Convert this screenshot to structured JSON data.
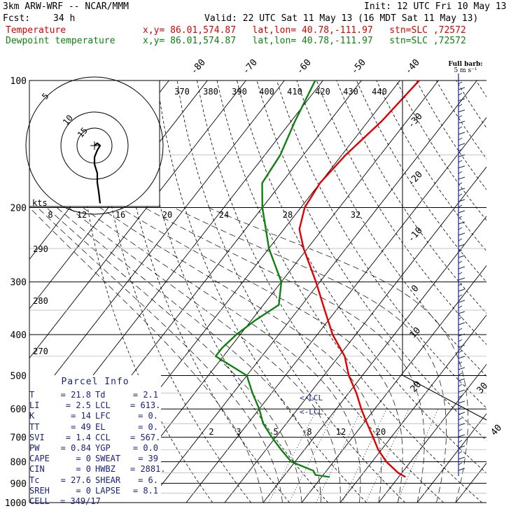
{
  "header": {
    "title": "3km ARW-WRF -- NCAR/MMM",
    "init": "Init: 12 UTC Fri 10 May 13",
    "fcst_label": "Fcst:",
    "fcst_value": "34 h",
    "valid": "Valid: 22 UTC Sat 11 May 13 (16 MDT Sat 11 May 13)",
    "temp_label": "Temperature",
    "dew_label": "Dewpoint temperature",
    "point_info": "x,y= 86.01,574.87   lat,lon= 40.78,-111.97   stn=SLC ,72572",
    "temp_color": "#e00000",
    "dew_color": "#108010"
  },
  "barb_title": "Full barb:",
  "barb_units": "5 m s⁻¹",
  "parcel": {
    "title": "Parcel Info",
    "rows": [
      [
        "T",
        "= 21.8",
        "Td",
        "= 2.1"
      ],
      [
        "LI",
        "= 2.5",
        "LCL",
        "= 613."
      ],
      [
        "K",
        "= 14",
        "LFC",
        "= 0."
      ],
      [
        "TT",
        "= 49",
        "EL",
        "= 0."
      ],
      [
        "SVI",
        "= 1.4",
        "CCL",
        "= 567."
      ],
      [
        "PW",
        "= 0.84",
        "YGP",
        "= 0.0"
      ],
      [
        "CAPE",
        "= 0",
        "SWEAT",
        "= 39"
      ],
      [
        "CIN",
        "= 0",
        "HWBZ",
        "= 2881."
      ],
      [
        "Tc",
        "= 27.6",
        "SHEAR",
        "= 6."
      ],
      [
        "SREH",
        "= 0",
        "LAPSE",
        "= 8.1"
      ],
      [
        "CELL",
        "= 349/17",
        "",
        ""
      ]
    ]
  },
  "hodograph": {
    "units_label": "kts",
    "ring_labels": [
      "5",
      "10",
      "15"
    ],
    "points": [
      [
        0,
        0
      ],
      [
        1,
        -1
      ],
      [
        2,
        0
      ],
      [
        1,
        2
      ],
      [
        0,
        5
      ],
      [
        0,
        8
      ],
      [
        1,
        12
      ],
      [
        1,
        16
      ],
      [
        1.5,
        20
      ],
      [
        2,
        25
      ]
    ]
  },
  "chart_data": {
    "type": "line",
    "subtype": "skew-T log-p",
    "pressure_range_hpa": [
      1000,
      100
    ],
    "pressure_ticks": [
      100,
      200,
      300,
      400,
      500,
      600,
      700,
      800,
      900,
      1000
    ],
    "isotherm_labels": [
      "-80",
      "-70",
      "-60",
      "-50",
      "-40",
      "-30",
      "-20",
      "-10",
      "0",
      "10",
      "20",
      "30",
      "40"
    ],
    "theta_labels": [
      "370",
      "380",
      "390",
      "400",
      "410",
      "420",
      "430",
      "440"
    ],
    "mixing_ratio_upper_labels": [
      "8",
      "12",
      "16",
      "20",
      "24",
      "28",
      "32"
    ],
    "mixing_ratio_lower_labels": [
      "2",
      "3",
      "5",
      "8",
      "12",
      "20"
    ],
    "theta_left_labels": [
      "290",
      "280",
      "270"
    ],
    "lcl_markers": [
      "LCL",
      "LCL"
    ],
    "series": [
      {
        "name": "Temperature",
        "pressure": [
          870,
          850,
          800,
          750,
          700,
          650,
          600,
          550,
          500,
          450,
          400,
          350,
          300,
          250,
          225,
          200,
          175,
          150,
          125,
          100
        ],
        "values": [
          21.8,
          19.0,
          13.7,
          9.2,
          5.3,
          1.0,
          -3.5,
          -8.0,
          -13.5,
          -18.5,
          -26.0,
          -33.0,
          -41.0,
          -51.0,
          -56.0,
          -59.0,
          -60.0,
          -59.0,
          -56.5,
          -55.0
        ]
      },
      {
        "name": "Dewpoint temperature",
        "pressure": [
          870,
          860,
          840,
          800,
          750,
          700,
          650,
          600,
          550,
          500,
          450,
          430,
          400,
          370,
          340,
          300,
          250,
          200,
          175,
          150,
          125,
          100
        ],
        "values": [
          2.1,
          -2.0,
          -3.5,
          -11.0,
          -16.0,
          -21.0,
          -26.0,
          -30.0,
          -35.0,
          -40.0,
          -52.0,
          -52.0,
          -51.0,
          -49.0,
          -46.0,
          -50.0,
          -60.0,
          -70.0,
          -75.0,
          -76.0,
          -79.0,
          -82.0
        ]
      }
    ]
  }
}
